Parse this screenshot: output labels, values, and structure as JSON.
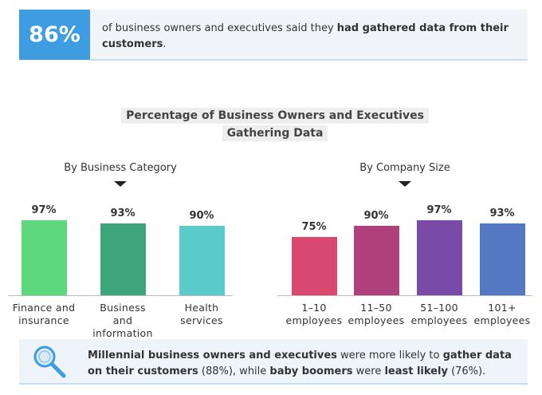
{
  "header": {
    "stat": "86%",
    "text": [
      {
        "text": "of business owners and executives said they "
      },
      {
        "text": "had gathered data from their customers",
        "bold": true
      },
      {
        "text": "."
      }
    ]
  },
  "title": "Percentage of Business Owners and Executives Gathering Data",
  "chart_data": [
    {
      "type": "bar",
      "subtitle": "By Business Category",
      "categories": [
        "Finance and insurance",
        "Business and information",
        "Health services"
      ],
      "values": [
        97,
        93,
        90
      ],
      "value_labels": [
        "97%",
        "93%",
        "90%"
      ],
      "colors": [
        "#5dd87c",
        "#3ea57a",
        "#5acaca"
      ]
    },
    {
      "type": "bar",
      "subtitle": "By Company Size",
      "categories": [
        "1–10 employees",
        "11–50 employees",
        "51–100 employees",
        "101+ employees"
      ],
      "values": [
        75,
        90,
        97,
        93
      ],
      "value_labels": [
        "75%",
        "90%",
        "97%",
        "93%"
      ],
      "colors": [
        "#d9496f",
        "#b0407b",
        "#7a4aa9",
        "#5578c3"
      ]
    }
  ],
  "footer": {
    "text": [
      {
        "text": "Millennial business owners and executives",
        "bold": true
      },
      {
        "text": " were more likely to "
      },
      {
        "text": "gather data on their customers",
        "bold": true
      },
      {
        "text": " (88%), while "
      },
      {
        "text": "baby boomers",
        "bold": true
      },
      {
        "text": " were "
      },
      {
        "text": "least likely",
        "bold": true
      },
      {
        "text": " (76%)."
      }
    ]
  }
}
